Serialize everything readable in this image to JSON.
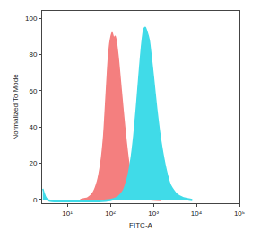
{
  "chart_data": {
    "type": "area",
    "x_label": "FITC-A",
    "y_label": "Normalized To Mode",
    "log": "x",
    "grid": false,
    "xlim": [
      2.6,
      100000
    ],
    "ylim": [
      -2,
      104
    ],
    "xticks": [
      {
        "value": 10,
        "label": "10¹"
      },
      {
        "value": 100,
        "label": "10²"
      },
      {
        "value": 1000,
        "label": "10³"
      },
      {
        "value": 10000,
        "label": "10⁴"
      },
      {
        "value": 100000,
        "label": "10⁵"
      }
    ],
    "yticks": [
      0,
      20,
      40,
      60,
      80,
      100
    ],
    "series": [
      {
        "color": "#f47f7f",
        "x": [
          20,
          30,
          40,
          50,
          60,
          70,
          80,
          90,
          100,
          110,
          120,
          130,
          150,
          180,
          220,
          270,
          330,
          420,
          550,
          800,
          1500
        ],
        "values": [
          0,
          1,
          4,
          10,
          20,
          35,
          58,
          78,
          88,
          92,
          89,
          90,
          80,
          60,
          38,
          20,
          10,
          4,
          1.5,
          0.5,
          0
        ]
      },
      {
        "color": "#40dbe8",
        "x": [
          2.7,
          3.5,
          100,
          150,
          200,
          250,
          300,
          350,
          400,
          450,
          500,
          550,
          600,
          650,
          700,
          800,
          900,
          1000,
          1200,
          1500,
          2000,
          2500,
          3500,
          5000,
          8000
        ],
        "values": [
          6,
          0,
          0,
          1.5,
          5,
          12,
          22,
          35,
          50,
          65,
          78,
          88,
          94,
          95,
          93,
          88,
          78,
          68,
          50,
          32,
          16,
          8,
          3,
          1,
          0
        ]
      }
    ]
  }
}
